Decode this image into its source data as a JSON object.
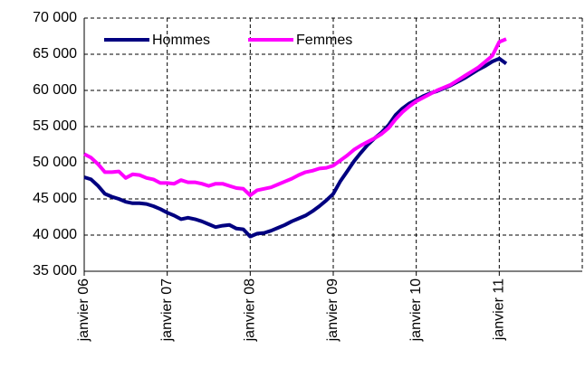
{
  "chart_data": {
    "type": "line",
    "categories": [
      "janvier 06",
      null,
      null,
      null,
      null,
      null,
      null,
      null,
      null,
      null,
      null,
      null,
      "janvier 07",
      null,
      null,
      null,
      null,
      null,
      null,
      null,
      null,
      null,
      null,
      null,
      "janvier 08",
      null,
      null,
      null,
      null,
      null,
      null,
      null,
      null,
      null,
      null,
      null,
      "janvier 09",
      null,
      null,
      null,
      null,
      null,
      null,
      null,
      null,
      null,
      null,
      null,
      "janvier 10",
      null,
      null,
      null,
      null,
      null,
      null,
      null,
      null,
      null,
      null,
      null,
      "janvier 11",
      null,
      null,
      null,
      null,
      null,
      null,
      null,
      null,
      null,
      null,
      null
    ],
    "series": [
      {
        "name": "Hommes",
        "color": "#000080",
        "values": [
          48000,
          47700,
          46800,
          45700,
          45300,
          45000,
          44600,
          44400,
          44400,
          44300,
          44000,
          43600,
          43100,
          42700,
          42200,
          42400,
          42200,
          41900,
          41500,
          41100,
          41300,
          41400,
          40900,
          40800,
          39800,
          40200,
          40300,
          40600,
          41000,
          41400,
          41900,
          42300,
          42700,
          43300,
          44000,
          44800,
          45700,
          47400,
          48800,
          50200,
          51400,
          52500,
          53400,
          54200,
          55200,
          56600,
          57500,
          58200,
          58700,
          59200,
          59600,
          59900,
          60300,
          60700,
          61200,
          61700,
          62300,
          62900,
          63400,
          64000,
          64400,
          63700,
          null,
          null,
          null,
          null,
          null,
          null,
          null,
          null,
          null,
          null
        ]
      },
      {
        "name": "Femmes",
        "color": "#ff00ff",
        "values": [
          51200,
          50700,
          49800,
          48700,
          48700,
          48800,
          47900,
          48400,
          48300,
          47900,
          47700,
          47200,
          47200,
          47100,
          47600,
          47300,
          47300,
          47100,
          46800,
          47100,
          47100,
          46800,
          46500,
          46400,
          45500,
          46200,
          46400,
          46600,
          47000,
          47400,
          47800,
          48300,
          48700,
          48900,
          49200,
          49300,
          49600,
          50300,
          51000,
          51800,
          52400,
          52900,
          53400,
          54000,
          54800,
          56000,
          57000,
          57800,
          58500,
          59000,
          59500,
          60000,
          60400,
          60800,
          61400,
          62000,
          62600,
          63200,
          64000,
          64800,
          66700,
          67100,
          null,
          null,
          null,
          null,
          null,
          null,
          null,
          null,
          null,
          null
        ]
      }
    ],
    "ylim": [
      35000,
      70000
    ],
    "yticks": [
      {
        "value": 35000,
        "label": "35 000"
      },
      {
        "value": 40000,
        "label": "40 000"
      },
      {
        "value": 45000,
        "label": "45 000"
      },
      {
        "value": 50000,
        "label": "50 000"
      },
      {
        "value": 55000,
        "label": "55 000"
      },
      {
        "value": 60000,
        "label": "60 000"
      },
      {
        "value": 65000,
        "label": "65 000"
      },
      {
        "value": 70000,
        "label": "70 000"
      }
    ],
    "grid": true,
    "legend": "upper left"
  }
}
